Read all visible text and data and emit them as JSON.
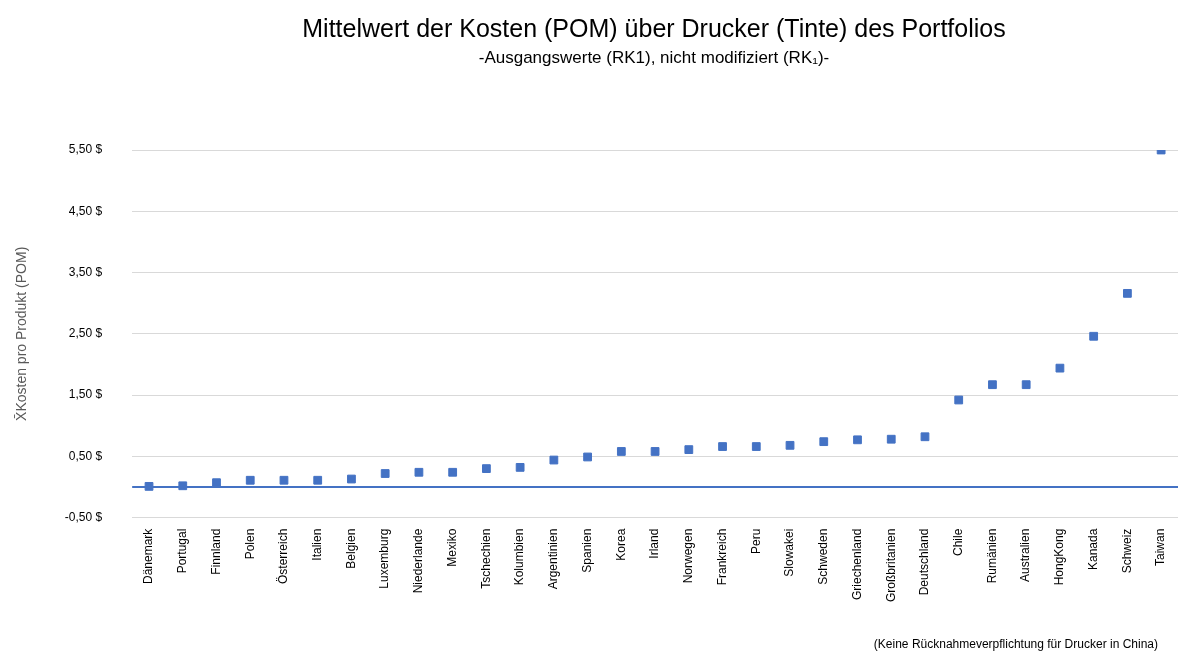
{
  "chart_data": {
    "type": "scatter",
    "title": "Mittelwert der Kosten (POM) über  Drucker (Tinte) des Portfolios",
    "subtitle": "-Ausgangswerte (RK1), nicht modifiziert (RK₁)-",
    "ylabel": "X̄Kosten pro Produkt (POM)",
    "categories": [
      "Dänemark",
      "Portugal",
      "Finnland",
      "Polen",
      "Österreich",
      "Italien",
      "Belgien",
      "Luxemburg",
      "Niederlande",
      "Mexiko",
      "Tschechien",
      "Kolumbien",
      "Argentinien",
      "Spanien",
      "Korea",
      "Irland",
      "Norwegen",
      "Frankreich",
      "Peru",
      "Slowakei",
      "Schweden",
      "Griechenland",
      "Großbritanien",
      "Deutschland",
      "Chile",
      "Rumänien",
      "Australien",
      "HongKong",
      "Kanada",
      "Schweiz",
      "Taiwan"
    ],
    "values": [
      0.01,
      0.02,
      0.07,
      0.11,
      0.11,
      0.11,
      0.13,
      0.22,
      0.24,
      0.24,
      0.3,
      0.32,
      0.44,
      0.49,
      0.58,
      0.58,
      0.61,
      0.66,
      0.66,
      0.68,
      0.74,
      0.77,
      0.78,
      0.82,
      1.42,
      1.67,
      1.67,
      1.94,
      2.46,
      3.16,
      5.5
    ],
    "color": "#4472c4",
    "marker": "square",
    "grid": "y",
    "legend": false,
    "ylim": [
      -0.5,
      5.5
    ],
    "yticks": [
      {
        "value": -0.5,
        "label": "-0,50 $"
      },
      {
        "value": 0.5,
        "label": "0,50 $"
      },
      {
        "value": 1.5,
        "label": "1,50 $"
      },
      {
        "value": 2.5,
        "label": "2,50 $"
      },
      {
        "value": 3.5,
        "label": "3,50 $"
      },
      {
        "value": 4.5,
        "label": "4,50 $"
      },
      {
        "value": 5.5,
        "label": "5,50 $"
      }
    ],
    "ref_lines": [
      {
        "axis": "y",
        "value": 0,
        "color": "#4472c4"
      }
    ],
    "annotations": [
      "(Keine Rücknahmeverpflichtung für Drucker in China)"
    ]
  }
}
